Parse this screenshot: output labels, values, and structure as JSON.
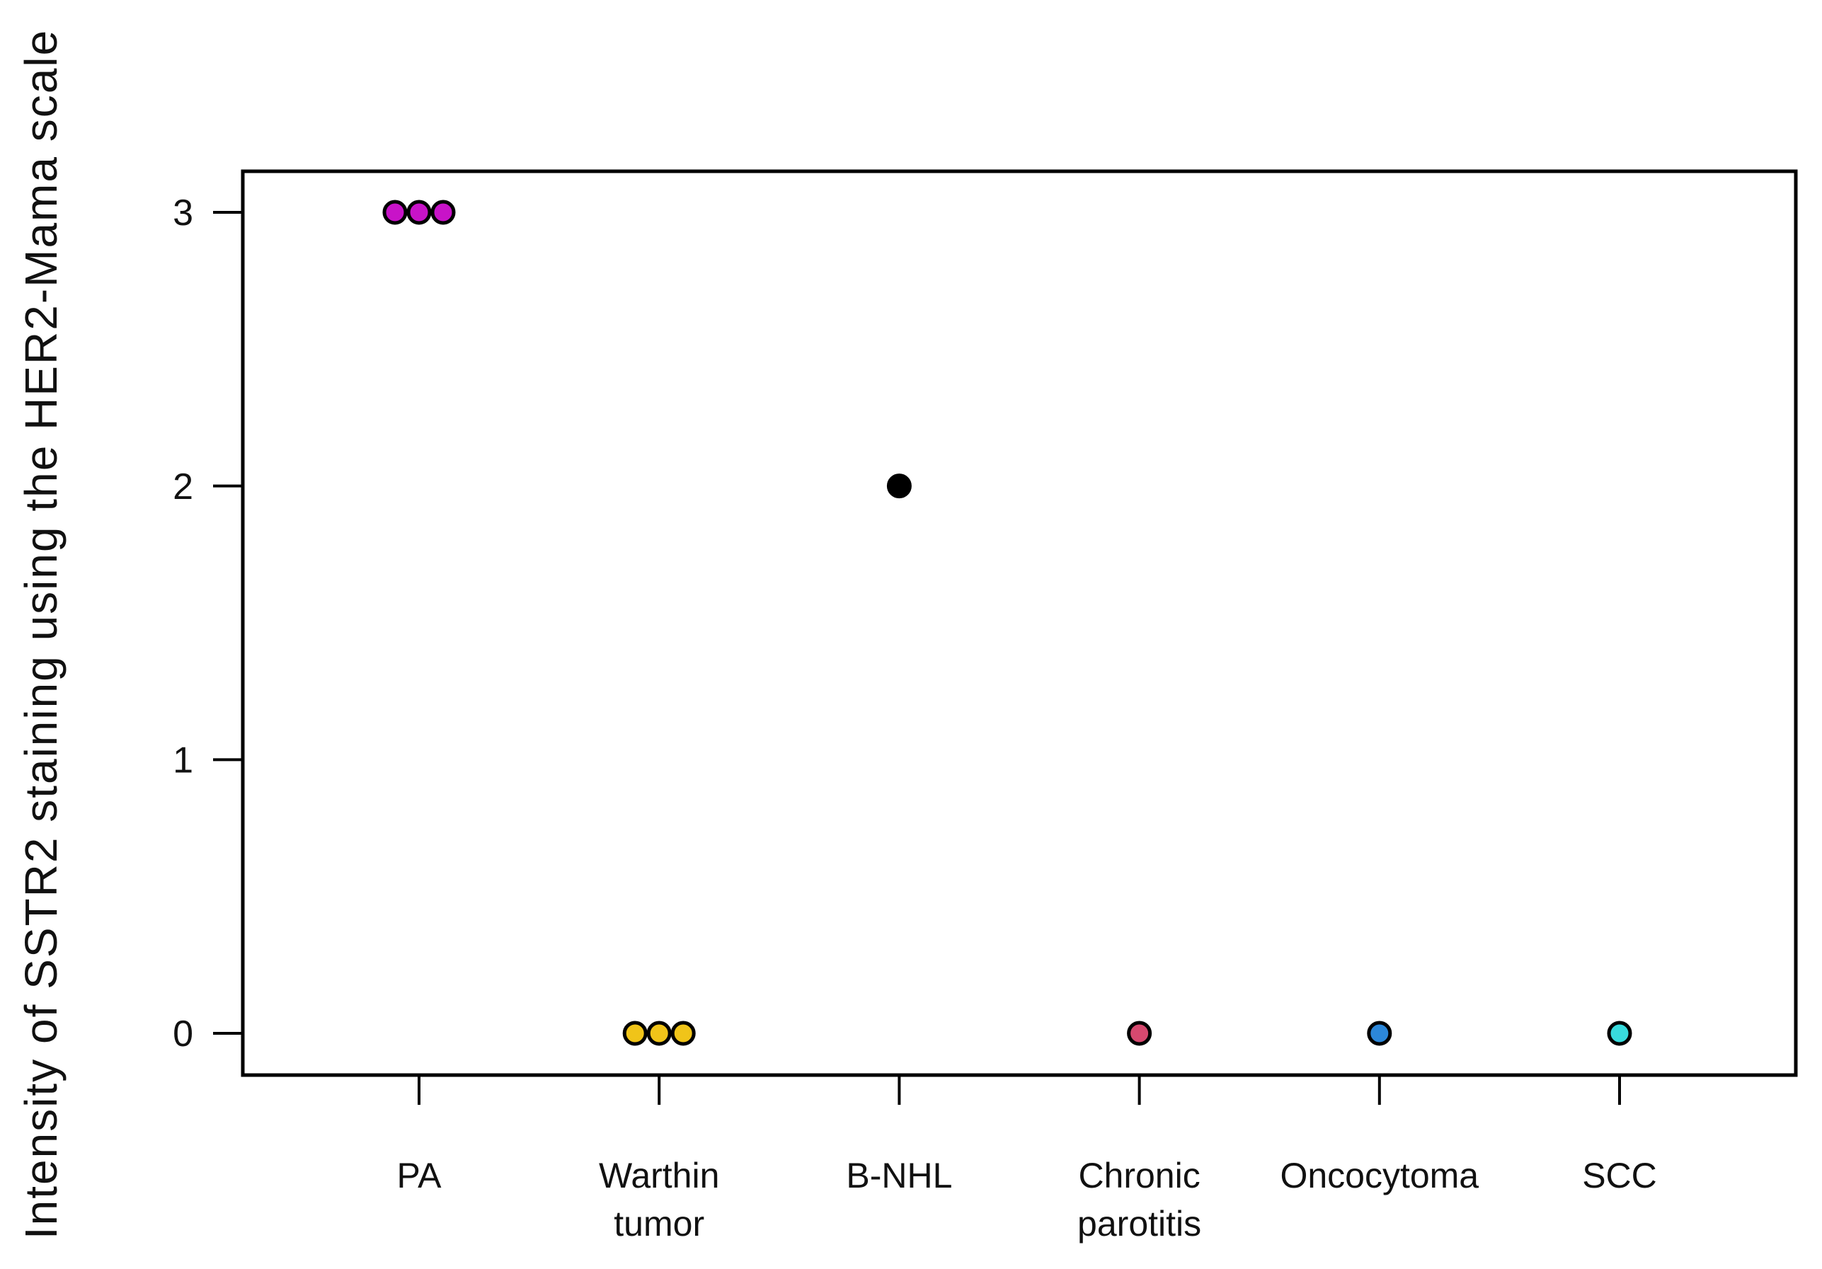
{
  "figure": {
    "background_color": "#FFFFFF",
    "text_color": "#111111",
    "axis_color": "#000000"
  },
  "chart_data": {
    "type": "scatter",
    "title": "",
    "xlabel": "",
    "ylabel": "Intensity of SSTR2 staining using the HER2-Mama scale",
    "ylim": [
      0,
      3
    ],
    "yticks": [
      "0",
      "1",
      "2",
      "3"
    ],
    "grid": false,
    "legend": "none",
    "point_outline_color": "#000000",
    "categories": [
      {
        "label": "PA",
        "label_lines": [
          "PA"
        ],
        "color": "#C813C8",
        "values": [
          3,
          3,
          3
        ]
      },
      {
        "label": "Warthin tumor",
        "label_lines": [
          "Warthin",
          "tumor"
        ],
        "color": "#F0C419",
        "values": [
          0,
          0,
          0
        ]
      },
      {
        "label": "B-NHL",
        "label_lines": [
          "B-NHL"
        ],
        "color": "#000000",
        "values": [
          2
        ]
      },
      {
        "label": "Chronic parotitis",
        "label_lines": [
          "Chronic",
          "parotitis"
        ],
        "color": "#D6496F",
        "values": [
          0
        ]
      },
      {
        "label": "Oncocytoma",
        "label_lines": [
          "Oncocytoma"
        ],
        "color": "#2C87D9",
        "values": [
          0
        ]
      },
      {
        "label": "SCC",
        "label_lines": [
          "SCC"
        ],
        "color": "#38DBDD",
        "values": [
          0
        ]
      }
    ]
  }
}
